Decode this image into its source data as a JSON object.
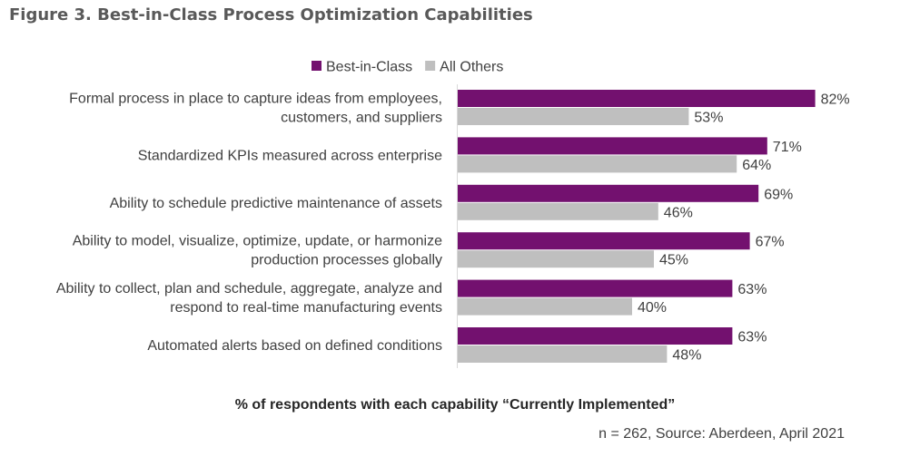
{
  "figure": {
    "title": "Figure 3. Best-in-Class Process Optimization Capabilities",
    "caption": "% of respondents with each capability “Currently Implemented”",
    "source": "n = 262, Source: Aberdeen, April 2021"
  },
  "chart_data": {
    "type": "bar",
    "orientation": "horizontal",
    "title": "Figure 3. Best-in-Class Process Optimization Capabilities",
    "xlabel": "% of respondents with each capability “Currently Implemented”",
    "xlim": [
      0,
      100
    ],
    "value_suffix": "%",
    "grid": false,
    "legend_position": "top",
    "categories": [
      [
        "Formal process in place to capture ideas from employees,",
        "customers, and suppliers"
      ],
      [
        "Standardized KPIs measured across enterprise"
      ],
      [
        "Ability to schedule predictive maintenance of assets"
      ],
      [
        "Ability to model, visualize, optimize, update, or harmonize",
        "production processes globally"
      ],
      [
        "Ability to collect, plan and schedule, aggregate, analyze and",
        "respond to real-time manufacturing events"
      ],
      [
        "Automated alerts based on defined conditions"
      ]
    ],
    "series": [
      {
        "name": "Best-in-Class",
        "color": "#73116f",
        "values": [
          82,
          71,
          69,
          67,
          63,
          63
        ]
      },
      {
        "name": "All Others",
        "color": "#bfbfbf",
        "values": [
          53,
          64,
          46,
          45,
          40,
          48
        ]
      }
    ]
  }
}
